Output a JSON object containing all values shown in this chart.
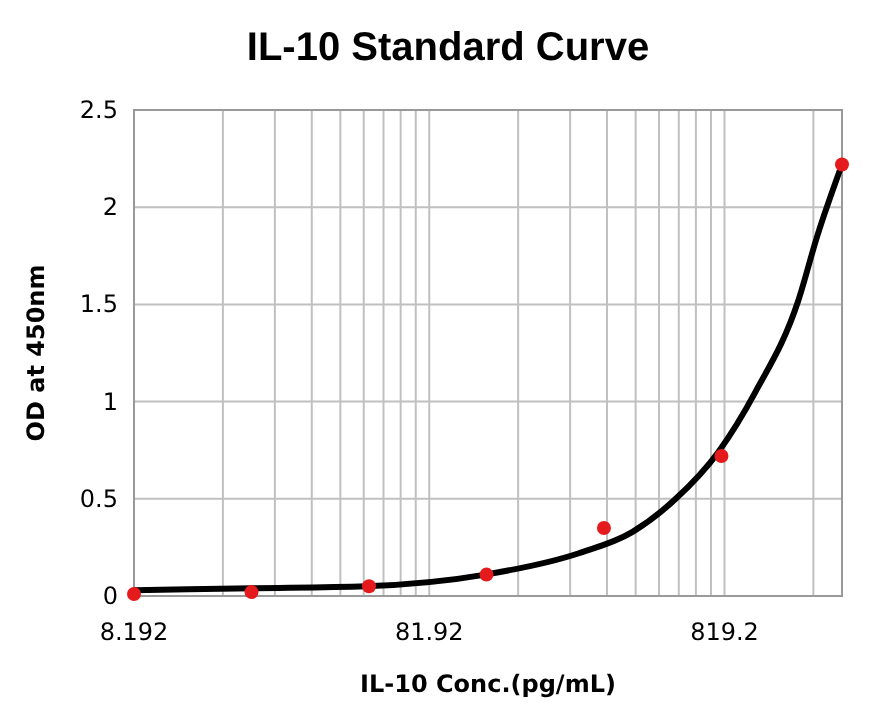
{
  "chart_data": {
    "type": "scatter",
    "title": "IL-10 Standard Curve",
    "xlabel": "IL-10  Conc.(pg/mL)",
    "ylabel": "OD at 450nm",
    "log": "x",
    "grid": true,
    "marker": "circle",
    "xlim": [
      8.192,
      2048
    ],
    "ylim": [
      0,
      2.5
    ],
    "xticks": [
      8.192,
      {
        "value": 16.384,
        "label": null
      },
      {
        "value": 24.576,
        "label": null
      },
      {
        "value": 32.768,
        "label": null
      },
      {
        "value": 40.96,
        "label": null
      },
      {
        "value": 49.152,
        "label": null
      },
      {
        "value": 57.344,
        "label": null
      },
      {
        "value": 65.536,
        "label": null
      },
      {
        "value": 73.728,
        "label": null
      },
      81.92,
      {
        "value": 163.84,
        "label": null
      },
      {
        "value": 245.76,
        "label": null
      },
      {
        "value": 327.68,
        "label": null
      },
      {
        "value": 409.6,
        "label": null
      },
      {
        "value": 491.52,
        "label": null
      },
      {
        "value": 573.44,
        "label": null
      },
      {
        "value": 655.36,
        "label": null
      },
      {
        "value": 737.28,
        "label": null
      },
      819.2,
      {
        "value": 1638.4,
        "label": null
      }
    ],
    "yticks": [
      0,
      0.5,
      1,
      1.5,
      2,
      2.5
    ],
    "series": [
      {
        "type": "line",
        "marker": "none",
        "color": "#000000",
        "x": [
          8.192,
          20.7,
          50,
          127,
          263,
          400,
          560,
          780,
          1043,
          1457,
          1687,
          2048
        ],
        "values": [
          0.03,
          0.04,
          0.05,
          0.11,
          0.22,
          0.33,
          0.5,
          0.74,
          1.05,
          1.52,
          1.85,
          2.22
        ]
      },
      {
        "color": "#e41a1c",
        "x": [
          8.192,
          20.48,
          51.2,
          128,
          320,
          800,
          2048
        ],
        "values": [
          0.01,
          0.02,
          0.05,
          0.11,
          0.35,
          0.72,
          2.22
        ]
      }
    ]
  }
}
